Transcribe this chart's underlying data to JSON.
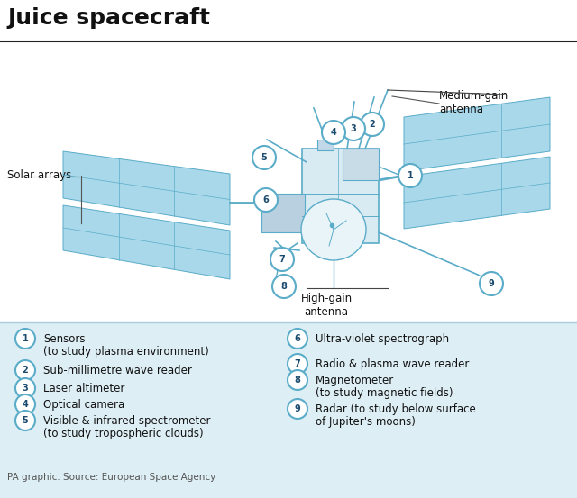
{
  "title": "Juice spacecraft",
  "title_fontsize": 18,
  "title_fontweight": "bold",
  "bg_color": "#ffffff",
  "panel_bg_color": "#ddeef5",
  "spacecraft_color": "#a8d8ea",
  "spacecraft_edge_color": "#5aacc8",
  "body_fill": "#d8eaf2",
  "body_edge": "#5aacc8",
  "dish_fill": "#e8f4f8",
  "label_color": "#111111",
  "circle_fill": "#ffffff",
  "circle_edge": "#5aacc8",
  "circle_num_color": "#1a4a6e",
  "source_text": "PA graphic. Source: European Space Agency",
  "items_left": [
    {
      "num": "1",
      "text": "Sensors\n(to study plasma environment)"
    },
    {
      "num": "2",
      "text": "Sub-millimetre wave reader"
    },
    {
      "num": "3",
      "text": "Laser altimeter"
    },
    {
      "num": "4",
      "text": "Optical camera"
    },
    {
      "num": "5",
      "text": "Visible & infrared spectrometer\n(to study tropospheric clouds)"
    }
  ],
  "items_right": [
    {
      "num": "6",
      "text": "Ultra-violet spectrograph"
    },
    {
      "num": "7",
      "text": "Radio & plasma wave reader"
    },
    {
      "num": "8",
      "text": "Magnetometer\n(to study magnetic fields)"
    },
    {
      "num": "9",
      "text": "Radar (to study below surface\nof Jupiter's moons)"
    }
  ]
}
